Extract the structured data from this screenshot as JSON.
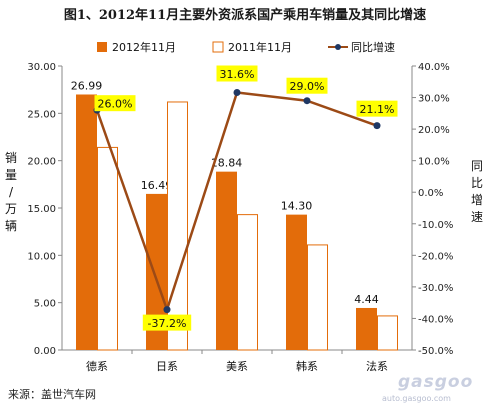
{
  "chart_data": {
    "type": "bar",
    "title": "图1、2012年11月主要外资派系国产乘用车销量及其同比增速",
    "categories": [
      "德系",
      "日系",
      "美系",
      "韩系",
      "法系"
    ],
    "series": [
      {
        "name": "2012年11月",
        "kind": "bar",
        "axis": "left",
        "color": "#e36c0a",
        "values": [
          26.99,
          16.49,
          18.84,
          14.3,
          4.44
        ],
        "labels": [
          "26.99",
          "16.49",
          "18.84",
          "14.30",
          "4.44"
        ]
      },
      {
        "name": "2011年11月",
        "kind": "bar",
        "axis": "left",
        "color": "#ffffff",
        "stroke": "#e36c0a",
        "values": [
          21.4,
          26.2,
          14.3,
          11.1,
          3.6
        ]
      },
      {
        "name": "同比增速",
        "kind": "line",
        "axis": "right",
        "color": "#9c4a16",
        "marker_color": "#1f3864",
        "values": [
          26.0,
          -37.2,
          31.6,
          29.0,
          21.1
        ],
        "labels": [
          "26.0%",
          "-37.2%",
          "31.6%",
          "29.0%",
          "21.1%"
        ]
      }
    ],
    "ylabel_left": "销量/万辆",
    "ylabel_right": "同比增速",
    "ylim_left": [
      0,
      30
    ],
    "yticks_left": [
      "0.00",
      "5.00",
      "10.00",
      "15.00",
      "20.00",
      "25.00",
      "30.00"
    ],
    "ylim_right": [
      -50,
      40
    ],
    "yticks_right": [
      "-50.0%",
      "-40.0%",
      "-30.0%",
      "-20.0%",
      "-10.0%",
      "0.0%",
      "10.0%",
      "20.0%",
      "30.0%",
      "40.0%"
    ],
    "label_highlight": "#ffff00",
    "legend_position": "top"
  },
  "source": "来源：盖世汽车网",
  "watermark": {
    "logo": "gasgoo",
    "url": "auto.gasgoo.com"
  }
}
